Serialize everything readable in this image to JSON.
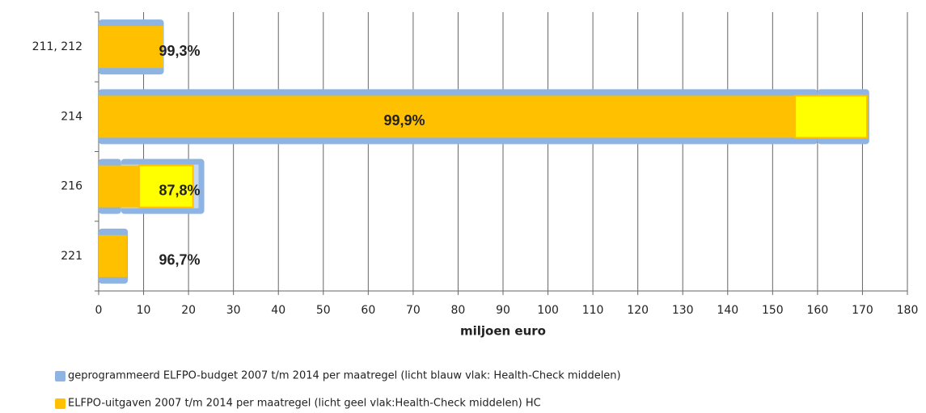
{
  "chart_data": {
    "type": "hbar-overlay",
    "categories": [
      "211, 212",
      "214",
      "216",
      "221"
    ],
    "series": [
      {
        "name": "geprogrammeerd ELFPO-budget 2007 t/m 2014 per maatregel (licht blauw vlak: Health-Check middelen)",
        "color": "#8eb4e3",
        "hc_color": "#c6d9f1",
        "values": [
          14.5,
          160,
          5,
          6.5
        ],
        "hc_values": [
          0,
          11.5,
          18.5,
          0
        ]
      },
      {
        "name": "ELFPO-uitgaven 2007 t/m 2014 per maatregel (licht geel vlak:Health-Check middelen) HC",
        "color": "#ffc000",
        "hc_color": "#ffff00",
        "values": [
          14.4,
          155,
          9,
          6.3
        ],
        "hc_values": [
          0,
          16,
          12,
          0
        ]
      }
    ],
    "value_labels": [
      "99,3%",
      "99,9%",
      "87,8%",
      "96,7%"
    ],
    "xlabel": "miljoen euro",
    "xlim": [
      0,
      180
    ],
    "xticks": [
      0,
      10,
      20,
      30,
      40,
      50,
      60,
      70,
      80,
      90,
      100,
      110,
      120,
      130,
      140,
      150,
      160,
      170,
      180
    ],
    "grid": true
  }
}
